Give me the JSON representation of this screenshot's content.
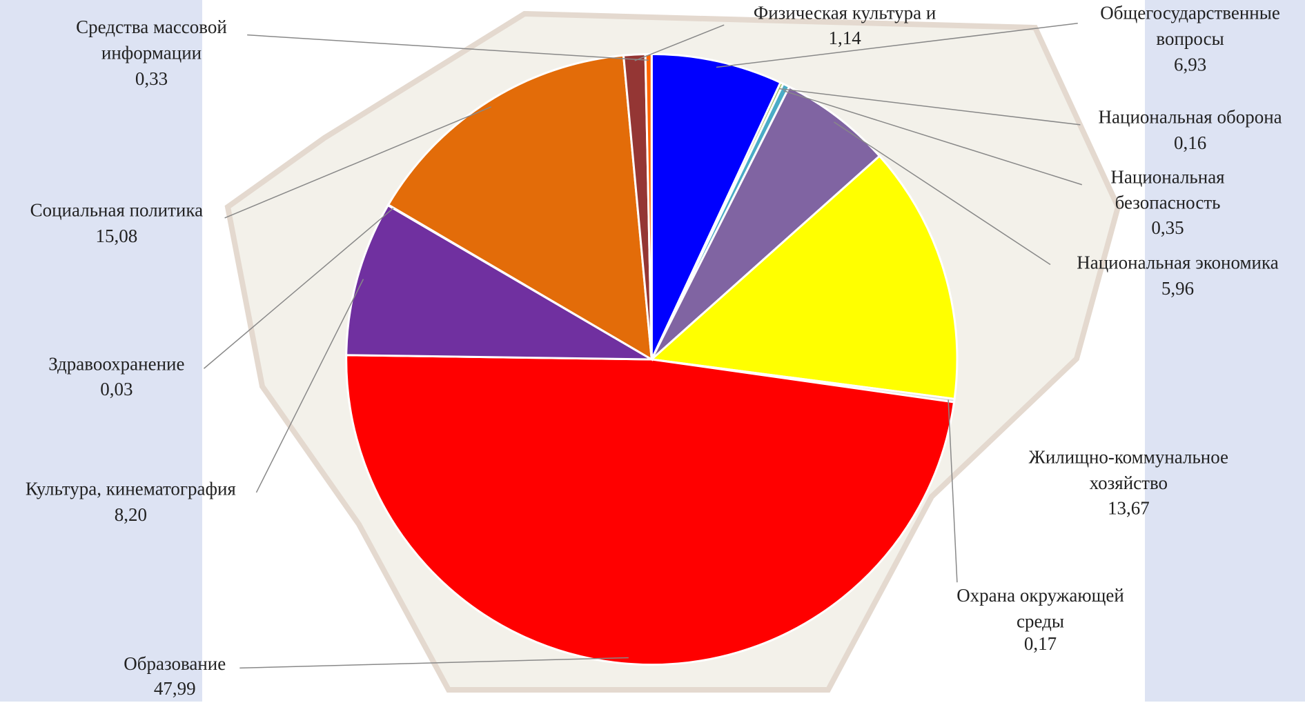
{
  "chart_data": {
    "type": "pie",
    "categories": [
      "Общегосударственные вопросы",
      "Национальная оборона",
      "Национальная безопасность",
      "Национальная экономика",
      "Жилищно-коммунальное хозяйство",
      "Охрана окружающей среды",
      "Образование",
      "Культура, кинематография",
      "Здравоохранение",
      "Социальная политика",
      "Физическая культура и спорт",
      "Средства массовой информации"
    ],
    "values": [
      6.93,
      0.16,
      0.35,
      5.96,
      13.67,
      0.17,
      47.99,
      8.2,
      0.03,
      15.08,
      1.14,
      0.33
    ],
    "value_labels": [
      "6,93",
      "0,16",
      "0,35",
      "5,96",
      "13,67",
      "0,17",
      "47,99",
      "8,20",
      "0,03",
      "15,08",
      "1,14",
      "0,33"
    ],
    "colors": [
      "#0000ff",
      "#9bbb59",
      "#4bacc6",
      "#8064a2",
      "#ffff00",
      "#d9d9d9",
      "#ff0000",
      "#7030a0",
      "#404040",
      "#e36c09",
      "#943634",
      "#ff6600"
    ]
  }
}
